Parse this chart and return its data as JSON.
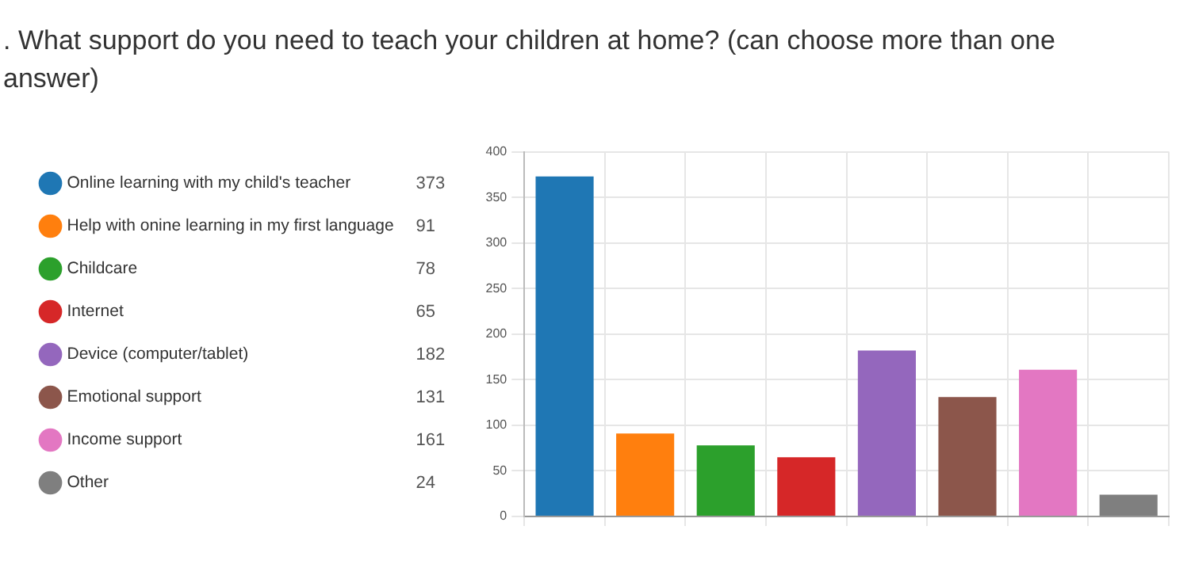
{
  "chart_data": {
    "type": "bar",
    "title": ". What support do you need to teach your children at home? (can choose more than one answer)",
    "categories": [
      null,
      null,
      null,
      null,
      null,
      null,
      null,
      null
    ],
    "series": [
      {
        "name": "Online learning with my child's teacher",
        "color": "#1f77b4",
        "values": [
          373,
          null,
          null,
          null,
          null,
          null,
          null,
          null
        ]
      },
      {
        "name": "Help with onine learning in my first language",
        "color": "#ff7f0e",
        "values": [
          null,
          91,
          null,
          null,
          null,
          null,
          null,
          null
        ]
      },
      {
        "name": "Childcare",
        "color": "#2ca02c",
        "values": [
          null,
          null,
          78,
          null,
          null,
          null,
          null,
          null
        ]
      },
      {
        "name": "Internet",
        "color": "#d62728",
        "values": [
          null,
          null,
          null,
          65,
          null,
          null,
          null,
          null
        ]
      },
      {
        "name": "Device (computer/tablet)",
        "color": "#9467bd",
        "values": [
          null,
          null,
          null,
          null,
          182,
          null,
          null,
          null
        ]
      },
      {
        "name": "Emotional support",
        "color": "#8c564b",
        "values": [
          null,
          null,
          null,
          null,
          null,
          131,
          null,
          null
        ]
      },
      {
        "name": "Income support",
        "color": "#e377c2",
        "values": [
          null,
          null,
          null,
          null,
          null,
          null,
          161,
          null
        ]
      },
      {
        "name": "Other",
        "color": "#7f7f7f",
        "values": [
          null,
          null,
          null,
          null,
          null,
          null,
          null,
          24
        ]
      }
    ],
    "ylim": [
      0,
      400
    ],
    "yticks": [
      0,
      50,
      100,
      150,
      200,
      250,
      300,
      350,
      400
    ],
    "annotations": [
      "373",
      "91",
      "78",
      "65",
      "182",
      "131",
      "161",
      "24"
    ],
    "grid": true,
    "tick_labels": "y",
    "legend": "left"
  }
}
